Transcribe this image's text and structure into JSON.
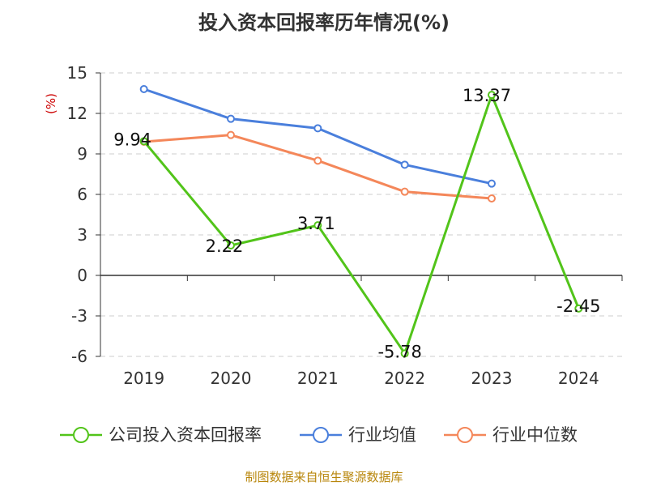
{
  "chart_data": {
    "type": "line",
    "title": "投入资本回报率历年情况(%)",
    "ylabel": "(%)",
    "xlabel": "",
    "categories": [
      "2019",
      "2020",
      "2021",
      "2022",
      "2023",
      "2024"
    ],
    "ylim": [
      -6,
      15
    ],
    "yticks": [
      15,
      12,
      9,
      6,
      3,
      0,
      -3,
      -6
    ],
    "grid": true,
    "legend_position": "bottom",
    "series": [
      {
        "name": "公司投入资本回报率",
        "color": "#52c41a",
        "values": [
          9.94,
          2.22,
          3.71,
          -5.78,
          13.37,
          -2.45
        ],
        "labels": [
          "9.94",
          "2.22",
          "3.71",
          "-5.78",
          "13.37",
          "-2.45"
        ]
      },
      {
        "name": "行业均值",
        "color": "#4a7fdc",
        "values": [
          13.8,
          11.6,
          10.9,
          8.2,
          6.8,
          null
        ]
      },
      {
        "name": "行业中位数",
        "color": "#f4875a",
        "values": [
          9.9,
          10.4,
          8.5,
          6.2,
          5.7,
          null
        ]
      }
    ]
  },
  "source": "制图数据来自恒生聚源数据库"
}
